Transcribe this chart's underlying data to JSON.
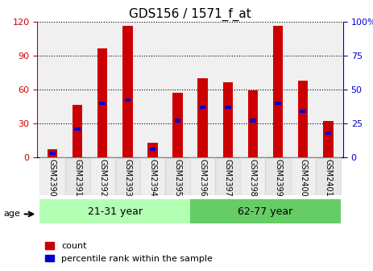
{
  "title": "GDS156 / 1571_f_at",
  "samples": [
    "GSM2390",
    "GSM2391",
    "GSM2392",
    "GSM2393",
    "GSM2394",
    "GSM2395",
    "GSM2396",
    "GSM2397",
    "GSM2398",
    "GSM2399",
    "GSM2400",
    "GSM2401"
  ],
  "count_values": [
    7,
    46,
    96,
    116,
    13,
    57,
    70,
    66,
    59,
    116,
    68,
    32
  ],
  "percentile_values": [
    3,
    21,
    40,
    42,
    6,
    27,
    37,
    37,
    27,
    40,
    34,
    18
  ],
  "ylim_left": [
    0,
    120
  ],
  "ylim_right": [
    0,
    100
  ],
  "yticks_left": [
    0,
    30,
    60,
    90,
    120
  ],
  "yticks_right": [
    0,
    25,
    50,
    75,
    100
  ],
  "groups": [
    {
      "label": "21-31 year",
      "start": 0,
      "end": 6,
      "color": "#b3ffb3"
    },
    {
      "label": "62-77 year",
      "start": 6,
      "end": 12,
      "color": "#66cc66"
    }
  ],
  "bar_color": "#cc0000",
  "percentile_color": "#0000cc",
  "background_color": "#ffffff",
  "grid_color": "#000000",
  "left_tick_color": "#cc0000",
  "right_tick_color": "#0000cc",
  "age_label": "age",
  "legend_count": "count",
  "legend_percentile": "percentile rank within the sample",
  "bar_width": 0.4
}
